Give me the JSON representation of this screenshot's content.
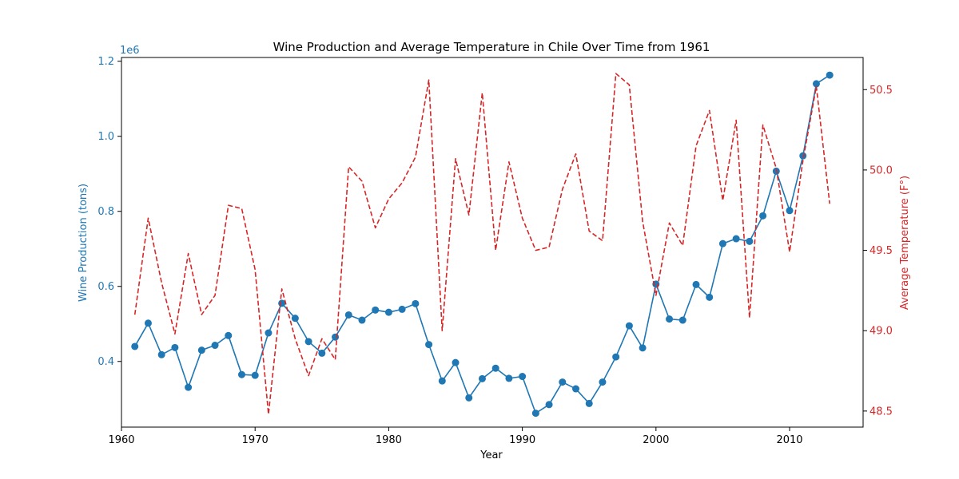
{
  "chart_data": {
    "type": "line",
    "title": "Wine Production and Average Temperature in Chile Over Time from 1961",
    "xlabel": "Year",
    "ylabel_left": "Wine Production (tons)",
    "ylabel_right": "Average Temperature (F°)",
    "left_offset_label": "1e6",
    "xlim": [
      1960.0,
      2015.5
    ],
    "ylim_left": [
      225000,
      1210000
    ],
    "ylim_right": [
      48.4,
      50.7
    ],
    "x_ticks": [
      1960,
      1970,
      1980,
      1990,
      2000,
      2010
    ],
    "x_tick_labels": [
      "1960",
      "1970",
      "1980",
      "1990",
      "2000",
      "2010"
    ],
    "y_left_ticks": [
      400000,
      600000,
      800000,
      1000000,
      1200000
    ],
    "y_left_tick_labels": [
      "0.4",
      "0.6",
      "0.8",
      "1.0",
      "1.2"
    ],
    "y_right_ticks": [
      48.5,
      49.0,
      49.5,
      50.0,
      50.5
    ],
    "y_right_tick_labels": [
      "48.5",
      "49.0",
      "49.5",
      "50.0",
      "50.5"
    ],
    "x": [
      1961,
      1962,
      1963,
      1964,
      1965,
      1966,
      1967,
      1968,
      1969,
      1970,
      1971,
      1972,
      1973,
      1974,
      1975,
      1976,
      1977,
      1978,
      1979,
      1980,
      1981,
      1982,
      1983,
      1984,
      1985,
      1986,
      1987,
      1988,
      1989,
      1990,
      1991,
      1992,
      1993,
      1994,
      1995,
      1996,
      1997,
      1998,
      1999,
      2000,
      2001,
      2002,
      2003,
      2004,
      2005,
      2006,
      2007,
      2008,
      2009,
      2010,
      2011,
      2012,
      2013
    ],
    "series": [
      {
        "name": "Wine Production (tons)",
        "axis": "left",
        "color": "#1f77b4",
        "style": "solid-markers",
        "values": [
          440000,
          502000,
          418000,
          437000,
          331000,
          430000,
          443000,
          469000,
          365000,
          363000,
          476000,
          555000,
          515000,
          453000,
          422000,
          465000,
          524000,
          510000,
          537000,
          531000,
          539000,
          554000,
          445000,
          348000,
          397000,
          303000,
          354000,
          382000,
          355000,
          360000,
          262000,
          285000,
          345000,
          327000,
          288000,
          345000,
          412000,
          495000,
          436000,
          606000,
          513000,
          510000,
          605000,
          571000,
          714000,
          727000,
          720000,
          788000,
          907000,
          802000,
          948000,
          1140000,
          1163000
        ]
      },
      {
        "name": "Average Temperature (F°)",
        "axis": "right",
        "color": "#d62728",
        "style": "dashed",
        "values": [
          49.1,
          49.7,
          49.3,
          48.98,
          49.48,
          49.1,
          49.22,
          49.78,
          49.76,
          49.38,
          48.48,
          49.26,
          48.95,
          48.72,
          48.95,
          48.82,
          50.02,
          49.93,
          49.64,
          49.82,
          49.92,
          50.08,
          50.56,
          49.0,
          50.07,
          49.72,
          50.48,
          49.5,
          50.05,
          49.7,
          49.5,
          49.52,
          49.88,
          50.1,
          49.62,
          49.56,
          50.6,
          50.53,
          49.68,
          49.22,
          49.67,
          49.53,
          50.15,
          50.37,
          49.81,
          50.31,
          49.08,
          50.28,
          50.01,
          49.49,
          50.06,
          50.52,
          49.79
        ]
      }
    ],
    "grid": false
  }
}
